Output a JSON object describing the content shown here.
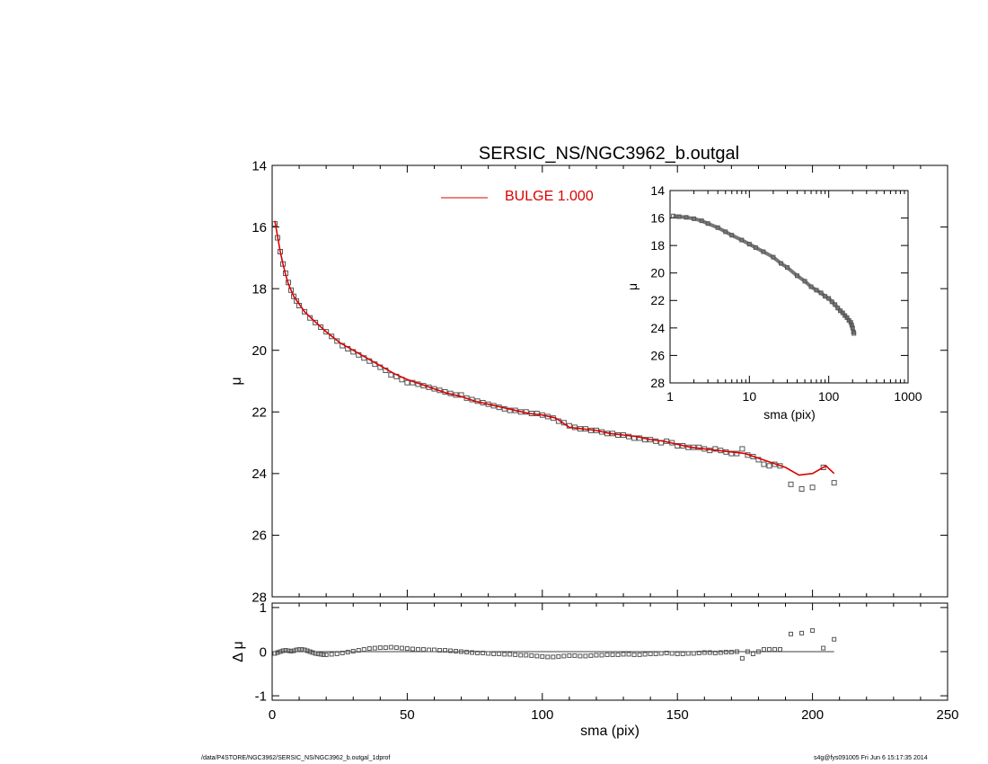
{
  "footer": {
    "path": "/data/P4STORE/NGC3962/SERSIC_NS/NGC3962_b.outgal_1dprof",
    "stamp": "s4g@fys091005  Fri Jun  6 15:17:35 2014"
  },
  "colors": {
    "model": "#dd0000",
    "data": "#555555",
    "axes": "#000000"
  },
  "chart_data": [
    {
      "id": "main-profile",
      "type": "scatter",
      "title": "SERSIC_NS/NGC3962_b.outgal",
      "xlabel": "",
      "ylabel": "μ",
      "xlim": [
        0,
        250
      ],
      "ylim": [
        28,
        14
      ],
      "xticks": [
        0,
        50,
        100,
        150,
        200,
        250
      ],
      "yticks": [
        14,
        16,
        18,
        20,
        22,
        24,
        26,
        28
      ],
      "legend": {
        "placement": "top-center",
        "entries": [
          {
            "label": "BULGE  1.000",
            "color": "#dd0000"
          }
        ]
      },
      "series": [
        {
          "name": "data",
          "marker": "square",
          "x": [
            1,
            2,
            3,
            4,
            5,
            6,
            7,
            8,
            9,
            10,
            12,
            14,
            16,
            18,
            20,
            22,
            24,
            26,
            28,
            30,
            32,
            34,
            36,
            38,
            40,
            42,
            44,
            46,
            48,
            50,
            52,
            54,
            56,
            58,
            60,
            62,
            64,
            66,
            68,
            70,
            72,
            74,
            76,
            78,
            80,
            82,
            84,
            86,
            88,
            90,
            92,
            94,
            96,
            98,
            100,
            102,
            104,
            106,
            108,
            110,
            112,
            114,
            116,
            118,
            120,
            122,
            124,
            126,
            128,
            130,
            132,
            134,
            136,
            138,
            140,
            142,
            144,
            146,
            148,
            150,
            152,
            154,
            156,
            158,
            160,
            162,
            164,
            166,
            168,
            170,
            172,
            174,
            176,
            178,
            180,
            182,
            184,
            186,
            188,
            192,
            196,
            200,
            204,
            208
          ],
          "y": [
            15.9,
            16.35,
            16.8,
            17.2,
            17.5,
            17.8,
            18.05,
            18.25,
            18.4,
            18.55,
            18.75,
            18.95,
            19.1,
            19.25,
            19.4,
            19.55,
            19.7,
            19.85,
            19.95,
            20.05,
            20.15,
            20.25,
            20.35,
            20.45,
            20.55,
            20.65,
            20.8,
            20.85,
            20.95,
            21.05,
            21.05,
            21.1,
            21.15,
            21.2,
            21.25,
            21.3,
            21.35,
            21.4,
            21.45,
            21.45,
            21.55,
            21.6,
            21.65,
            21.7,
            21.75,
            21.8,
            21.85,
            21.9,
            21.95,
            21.95,
            22.0,
            22.0,
            22.05,
            22.05,
            22.1,
            22.15,
            22.2,
            22.3,
            22.35,
            22.45,
            22.5,
            22.55,
            22.55,
            22.6,
            22.6,
            22.65,
            22.7,
            22.7,
            22.75,
            22.75,
            22.8,
            22.85,
            22.85,
            22.9,
            22.9,
            22.95,
            23.0,
            22.95,
            23.0,
            23.1,
            23.1,
            23.15,
            23.15,
            23.15,
            23.2,
            23.25,
            23.2,
            23.25,
            23.3,
            23.35,
            23.35,
            23.2,
            23.4,
            23.45,
            23.55,
            23.7,
            23.75,
            23.7,
            23.75,
            24.35,
            24.5,
            24.45,
            23.8,
            24.3
          ]
        },
        {
          "name": "model",
          "marker": "line",
          "x": [
            1,
            2,
            3,
            4,
            5,
            6,
            7,
            8,
            10,
            12,
            15,
            20,
            25,
            30,
            35,
            40,
            45,
            50,
            55,
            60,
            65,
            70,
            75,
            80,
            85,
            90,
            95,
            100,
            105,
            110,
            115,
            120,
            125,
            130,
            135,
            140,
            145,
            150,
            155,
            160,
            165,
            170,
            175,
            180,
            185,
            190,
            195,
            200,
            205,
            208
          ],
          "y": [
            15.8,
            16.3,
            16.8,
            17.2,
            17.55,
            17.85,
            18.05,
            18.25,
            18.5,
            18.75,
            19.0,
            19.4,
            19.75,
            20.0,
            20.25,
            20.5,
            20.75,
            20.95,
            21.1,
            21.25,
            21.4,
            21.5,
            21.65,
            21.75,
            21.85,
            21.95,
            22.05,
            22.1,
            22.2,
            22.5,
            22.55,
            22.6,
            22.7,
            22.75,
            22.8,
            22.9,
            22.95,
            23.05,
            23.15,
            23.2,
            23.25,
            23.3,
            23.35,
            23.5,
            23.65,
            23.8,
            24.05,
            24.0,
            23.75,
            24.0
          ]
        }
      ]
    },
    {
      "id": "residuals",
      "type": "scatter",
      "title": "",
      "xlabel": "sma (pix)",
      "ylabel": "Δ μ",
      "xlim": [
        0,
        250
      ],
      "ylim": [
        -1.1,
        1.1
      ],
      "xticks": [
        0,
        50,
        100,
        150,
        200,
        250
      ],
      "yticks": [
        -1,
        0,
        1
      ],
      "zero_line": true,
      "series": [
        {
          "name": "residual",
          "marker": "square",
          "x": [
            1,
            2,
            3,
            4,
            5,
            6,
            7,
            8,
            9,
            10,
            11,
            12,
            13,
            14,
            15,
            16,
            17,
            18,
            19,
            20,
            22,
            24,
            26,
            28,
            30,
            32,
            34,
            36,
            38,
            40,
            42,
            44,
            46,
            48,
            50,
            52,
            54,
            56,
            58,
            60,
            62,
            64,
            66,
            68,
            70,
            72,
            74,
            76,
            78,
            80,
            82,
            84,
            86,
            88,
            90,
            92,
            94,
            96,
            98,
            100,
            102,
            104,
            106,
            108,
            110,
            112,
            114,
            116,
            118,
            120,
            122,
            124,
            126,
            128,
            130,
            132,
            134,
            136,
            138,
            140,
            142,
            144,
            146,
            148,
            150,
            152,
            154,
            156,
            158,
            160,
            162,
            164,
            166,
            168,
            170,
            172,
            174,
            176,
            178,
            180,
            182,
            184,
            186,
            188,
            192,
            196,
            200,
            204,
            208
          ],
          "y": [
            -0.04,
            -0.02,
            0.0,
            0.02,
            0.03,
            0.02,
            0.01,
            0.02,
            0.04,
            0.05,
            0.05,
            0.04,
            0.02,
            0.0,
            -0.02,
            -0.04,
            -0.05,
            -0.06,
            -0.07,
            -0.07,
            -0.06,
            -0.05,
            -0.03,
            -0.01,
            0.01,
            0.03,
            0.05,
            0.07,
            0.08,
            0.09,
            0.09,
            0.1,
            0.09,
            0.08,
            0.07,
            0.06,
            0.05,
            0.05,
            0.04,
            0.04,
            0.03,
            0.03,
            0.02,
            0.01,
            0.0,
            -0.01,
            -0.02,
            -0.03,
            -0.03,
            -0.04,
            -0.05,
            -0.05,
            -0.06,
            -0.06,
            -0.07,
            -0.08,
            -0.08,
            -0.09,
            -0.1,
            -0.11,
            -0.12,
            -0.12,
            -0.11,
            -0.1,
            -0.09,
            -0.09,
            -0.1,
            -0.1,
            -0.09,
            -0.08,
            -0.08,
            -0.07,
            -0.07,
            -0.07,
            -0.06,
            -0.06,
            -0.07,
            -0.07,
            -0.06,
            -0.05,
            -0.05,
            -0.04,
            -0.03,
            -0.04,
            -0.05,
            -0.05,
            -0.04,
            -0.04,
            -0.03,
            -0.02,
            -0.02,
            -0.03,
            -0.02,
            -0.01,
            -0.01,
            0.0,
            -0.15,
            0.0,
            -0.05,
            0.0,
            0.05,
            0.05,
            0.05,
            0.05,
            0.4,
            0.42,
            0.48,
            0.08,
            0.28
          ]
        }
      ]
    },
    {
      "id": "inset-log",
      "type": "scatter",
      "title": "",
      "xlabel": "sma (pix)",
      "ylabel": "μ",
      "xscale": "log",
      "xlim": [
        1,
        1000
      ],
      "ylim": [
        28,
        14
      ],
      "xticks": [
        1,
        10,
        100,
        1000
      ],
      "yticks": [
        14,
        16,
        18,
        20,
        22,
        24,
        26,
        28
      ],
      "series": [
        {
          "name": "data",
          "marker": "square",
          "x": [
            1.1,
            1.3,
            1.6,
            2,
            2.5,
            3,
            4,
            5,
            6,
            8,
            10,
            12,
            15,
            20,
            25,
            30,
            40,
            50,
            60,
            70,
            80,
            90,
            100,
            110,
            120,
            130,
            140,
            150,
            160,
            170,
            180,
            190,
            195,
            200,
            205,
            208
          ],
          "y": [
            15.85,
            15.9,
            15.95,
            16.05,
            16.2,
            16.4,
            16.7,
            17.0,
            17.25,
            17.6,
            17.9,
            18.15,
            18.45,
            18.85,
            19.3,
            19.6,
            20.2,
            20.6,
            21.0,
            21.25,
            21.45,
            21.7,
            21.85,
            22.1,
            22.3,
            22.55,
            22.75,
            22.9,
            23.1,
            23.25,
            23.45,
            23.6,
            23.8,
            24.0,
            24.3,
            24.4
          ]
        }
      ]
    }
  ]
}
